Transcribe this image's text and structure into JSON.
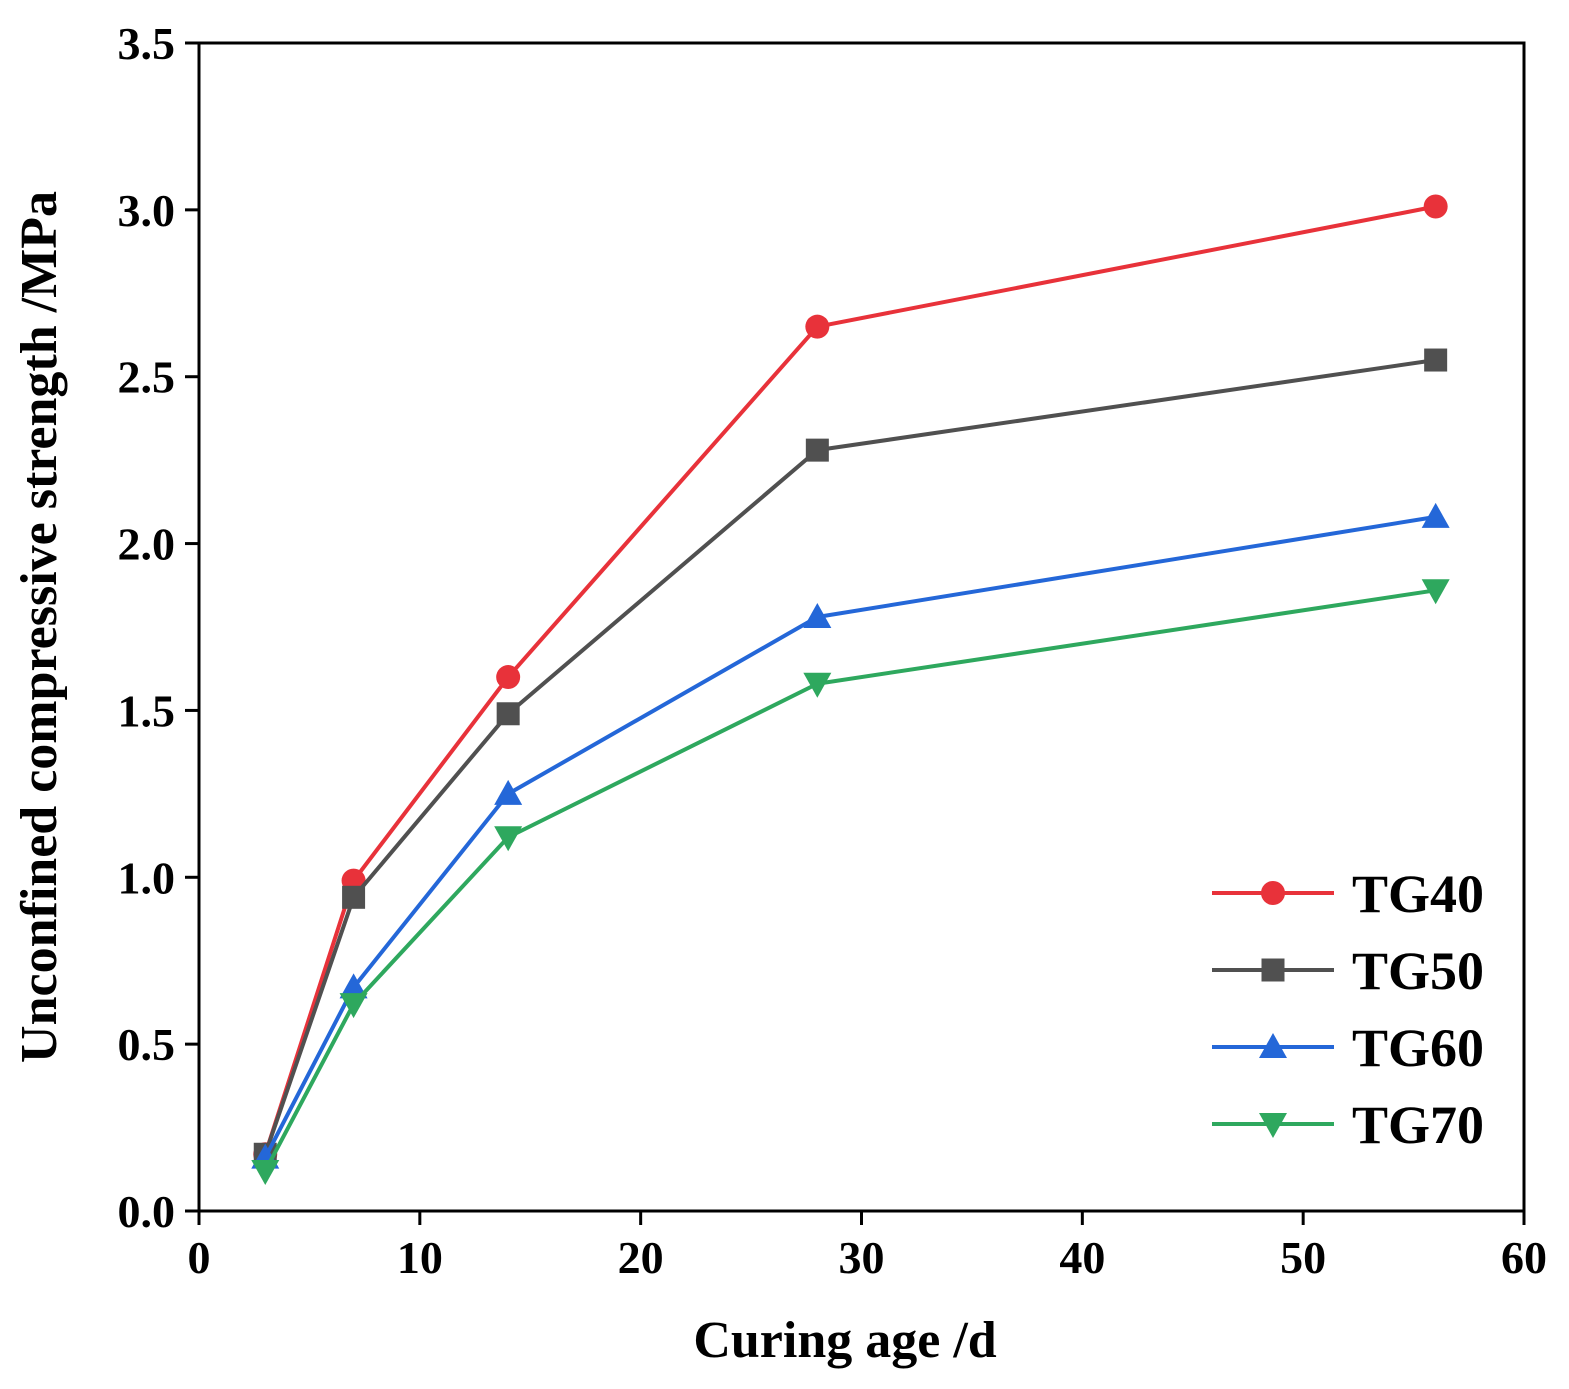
{
  "chart_data": {
    "type": "line",
    "title": "",
    "xlabel": "Curing age /d",
    "ylabel": "Unconfined compressive strength /MPa",
    "xlim": [
      0,
      60
    ],
    "ylim": [
      0.0,
      3.5
    ],
    "xticks": [
      "0",
      "10",
      "20",
      "30",
      "40",
      "50",
      "60"
    ],
    "yticks": [
      "0.0",
      "0.5",
      "1.0",
      "1.5",
      "2.0",
      "2.5",
      "3.0",
      "3.5"
    ],
    "grid": false,
    "legend_position": "bottom-right",
    "x": [
      3,
      7,
      14,
      28,
      56
    ],
    "series": [
      {
        "name": "TG40",
        "values": [
          0.17,
          0.99,
          1.6,
          2.65,
          3.01
        ],
        "color": "#e8323a",
        "marker": "circle"
      },
      {
        "name": "TG50",
        "values": [
          0.17,
          0.94,
          1.49,
          2.28,
          2.55
        ],
        "color": "#505050",
        "marker": "square"
      },
      {
        "name": "TG60",
        "values": [
          0.16,
          0.67,
          1.25,
          1.78,
          2.08
        ],
        "color": "#2467d8",
        "marker": "triangle-up"
      },
      {
        "name": "TG70",
        "values": [
          0.12,
          0.62,
          1.12,
          1.58,
          1.86
        ],
        "color": "#2ea85e",
        "marker": "triangle-down"
      }
    ]
  }
}
